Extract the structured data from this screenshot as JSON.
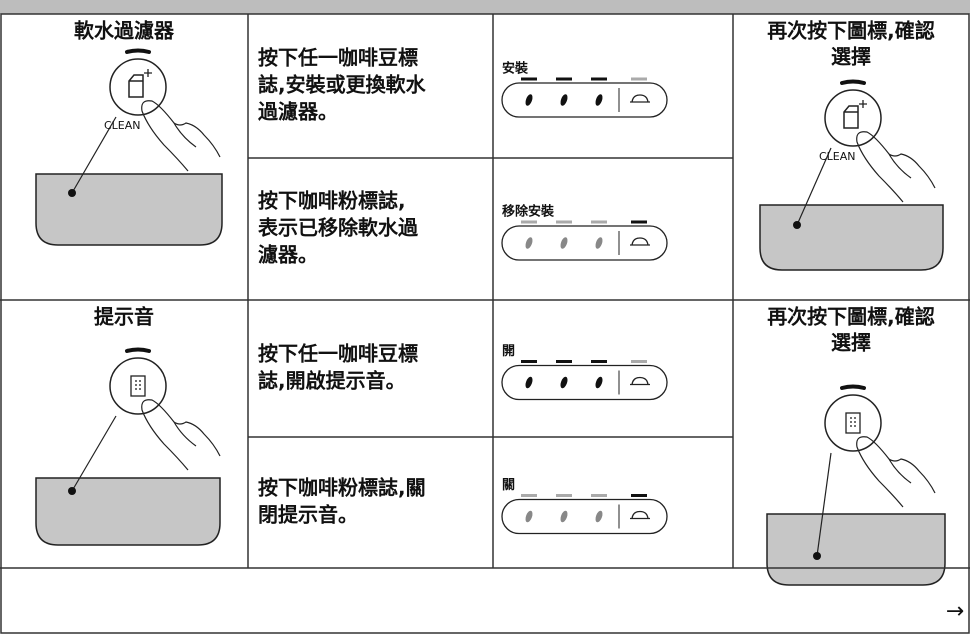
{
  "rows": [
    {
      "feature": "軟水過濾器",
      "icon_label": "CLEAN",
      "steps": [
        {
          "text": [
            "按下任一咖啡豆標",
            "誌,安裝或更換軟水",
            "過濾器。"
          ],
          "display": "安裝"
        },
        {
          "text": [
            "按下咖啡粉標誌,",
            "表示已移除軟水過",
            "濾器。"
          ],
          "display": "移除安裝"
        }
      ],
      "confirm": [
        "再次按下圖標,確認",
        "選擇"
      ]
    },
    {
      "feature": "提示音",
      "steps": [
        {
          "text": [
            "按下任一咖啡豆標",
            "誌,開啟提示音。"
          ],
          "display": "開"
        },
        {
          "text": [
            "按下咖啡粉標誌,關",
            "閉提示音。"
          ],
          "display": "關"
        }
      ],
      "confirm": [
        "再次按下圖標,確認",
        "選擇"
      ]
    }
  ],
  "next": "→"
}
